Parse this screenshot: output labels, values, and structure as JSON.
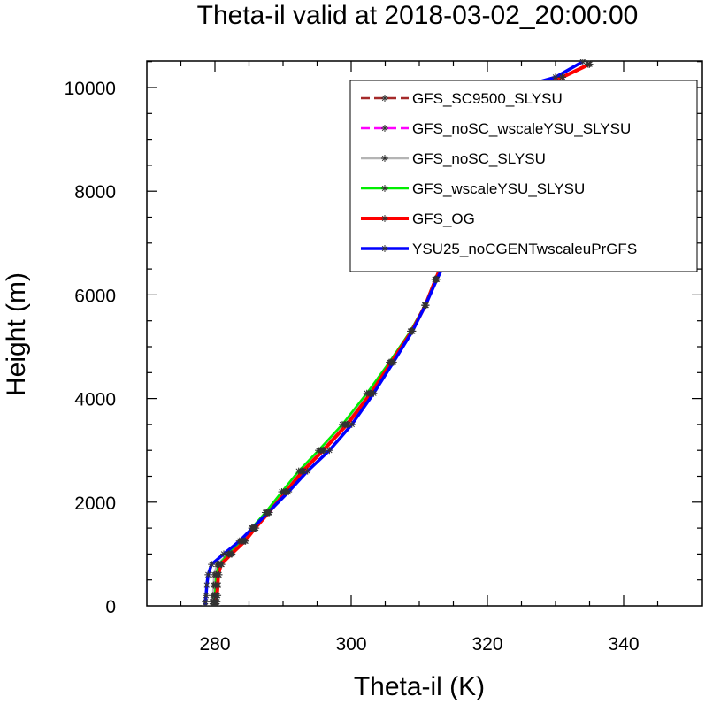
{
  "chart_data": {
    "type": "line",
    "title": "Theta-il valid at 2018-03-02_20:00:00",
    "xlabel": "Theta-il (K)",
    "ylabel": "Height (m)",
    "xlim": [
      270,
      350
    ],
    "ylim": [
      0,
      10500
    ],
    "xticks": [
      280,
      300,
      320,
      340
    ],
    "yticks": [
      0,
      2000,
      4000,
      6000,
      8000,
      10000
    ],
    "grid": false,
    "legend_position": "top-right",
    "marker": "asterisk",
    "series": [
      {
        "name": "GFS_SC9500_SLYSU",
        "color": "#a52a2a",
        "dash": "dashed",
        "width": 2.5,
        "points": [
          [
            280.3,
            0
          ],
          [
            280.3,
            80
          ],
          [
            280.4,
            200
          ],
          [
            280.5,
            400
          ],
          [
            280.6,
            600
          ],
          [
            281.0,
            800
          ],
          [
            282.5,
            1000
          ],
          [
            284.5,
            1250
          ],
          [
            286,
            1500
          ],
          [
            288,
            1800
          ],
          [
            290.5,
            2200
          ],
          [
            293,
            2600
          ],
          [
            296,
            3000
          ],
          [
            299.5,
            3500
          ],
          [
            303,
            4100
          ],
          [
            306,
            4700
          ],
          [
            309,
            5300
          ],
          [
            311,
            5800
          ],
          [
            312.5,
            6300
          ],
          [
            314,
            6800
          ],
          [
            315.5,
            7300
          ],
          [
            316.5,
            7800
          ],
          [
            317.5,
            8300
          ],
          [
            318.3,
            8900
          ],
          [
            319,
            9300
          ],
          [
            320,
            9700
          ],
          [
            321.5,
            9900
          ],
          [
            325,
            10000
          ],
          [
            331,
            10200
          ],
          [
            335,
            10450
          ]
        ]
      },
      {
        "name": "GFS_noSC_wscaleYSU_SLYSU",
        "color": "#ff00ff",
        "dash": "dashed",
        "width": 2.5,
        "points": [
          [
            279.8,
            0
          ],
          [
            279.8,
            80
          ],
          [
            279.9,
            200
          ],
          [
            280.0,
            400
          ],
          [
            280.1,
            600
          ],
          [
            280.5,
            800
          ],
          [
            282.2,
            1000
          ],
          [
            284.2,
            1250
          ],
          [
            285.8,
            1500
          ],
          [
            287.8,
            1800
          ],
          [
            290.3,
            2200
          ],
          [
            292.8,
            2600
          ],
          [
            295.7,
            3000
          ],
          [
            299.2,
            3500
          ],
          [
            302.8,
            4100
          ],
          [
            305.9,
            4700
          ],
          [
            308.9,
            5300
          ],
          [
            310.9,
            5800
          ],
          [
            312.4,
            6300
          ],
          [
            314,
            6800
          ],
          [
            315.5,
            7300
          ],
          [
            316.7,
            7800
          ],
          [
            317.7,
            8300
          ],
          [
            318.5,
            8900
          ],
          [
            319.2,
            9300
          ],
          [
            320.2,
            9700
          ],
          [
            321.8,
            9900
          ],
          [
            325,
            10000
          ],
          [
            331,
            10200
          ],
          [
            334.8,
            10450
          ]
        ]
      },
      {
        "name": "GFS_noSC_SLYSU",
        "color": "#b4b4b4",
        "dash": "solid",
        "width": 2.5,
        "points": [
          [
            279.6,
            0
          ],
          [
            279.6,
            80
          ],
          [
            279.7,
            200
          ],
          [
            279.8,
            400
          ],
          [
            279.9,
            600
          ],
          [
            280.3,
            800
          ],
          [
            282.0,
            1000
          ],
          [
            284.0,
            1250
          ],
          [
            285.6,
            1500
          ],
          [
            287.6,
            1800
          ],
          [
            290.1,
            2200
          ],
          [
            292.6,
            2600
          ],
          [
            295.5,
            3000
          ],
          [
            299.0,
            3500
          ],
          [
            302.6,
            4100
          ],
          [
            305.8,
            4700
          ],
          [
            308.8,
            5300
          ],
          [
            310.8,
            5800
          ],
          [
            312.3,
            6300
          ],
          [
            314,
            6800
          ],
          [
            315.6,
            7300
          ],
          [
            316.9,
            7800
          ],
          [
            317.9,
            8300
          ],
          [
            318.7,
            8900
          ],
          [
            319.4,
            9300
          ],
          [
            320.4,
            9700
          ],
          [
            322,
            9900
          ],
          [
            325,
            10000
          ],
          [
            331,
            10200
          ],
          [
            334.8,
            10450
          ]
        ]
      },
      {
        "name": "GFS_wscaleYSU_SLYSU",
        "color": "#00ee00",
        "dash": "solid",
        "width": 2.5,
        "points": [
          [
            279.9,
            0
          ],
          [
            279.9,
            80
          ],
          [
            280.0,
            200
          ],
          [
            280.1,
            400
          ],
          [
            280.2,
            600
          ],
          [
            280.6,
            800
          ],
          [
            282.0,
            1000
          ],
          [
            283.8,
            1250
          ],
          [
            285.4,
            1500
          ],
          [
            287.4,
            1800
          ],
          [
            289.8,
            2200
          ],
          [
            292.3,
            2600
          ],
          [
            295.2,
            3000
          ],
          [
            298.7,
            3500
          ],
          [
            302.3,
            4100
          ],
          [
            305.6,
            4700
          ],
          [
            308.7,
            5300
          ],
          [
            310.8,
            5800
          ],
          [
            312.3,
            6300
          ],
          [
            313.9,
            6800
          ],
          [
            315.5,
            7300
          ],
          [
            316.7,
            7800
          ],
          [
            317.8,
            8300
          ],
          [
            318.6,
            8900
          ],
          [
            319.3,
            9300
          ],
          [
            320.3,
            9700
          ],
          [
            321.9,
            9900
          ],
          [
            325,
            10000
          ],
          [
            331,
            10200
          ],
          [
            334.8,
            10450
          ]
        ]
      },
      {
        "name": "GFS_OG",
        "color": "#ff0000",
        "dash": "solid",
        "width": 4,
        "points": [
          [
            280.2,
            0
          ],
          [
            280.2,
            80
          ],
          [
            280.3,
            200
          ],
          [
            280.4,
            400
          ],
          [
            280.5,
            600
          ],
          [
            280.9,
            800
          ],
          [
            282.4,
            1000
          ],
          [
            284.4,
            1250
          ],
          [
            285.9,
            1500
          ],
          [
            287.9,
            1800
          ],
          [
            290.4,
            2200
          ],
          [
            292.9,
            2600
          ],
          [
            295.9,
            3000
          ],
          [
            299.4,
            3500
          ],
          [
            302.9,
            4100
          ],
          [
            305.9,
            4700
          ],
          [
            308.9,
            5300
          ],
          [
            310.9,
            5800
          ],
          [
            312.4,
            6300
          ],
          [
            314,
            6800
          ],
          [
            315.5,
            7300
          ],
          [
            316.6,
            7800
          ],
          [
            317.6,
            8300
          ],
          [
            318.4,
            8900
          ],
          [
            319.1,
            9300
          ],
          [
            320.1,
            9700
          ],
          [
            321.6,
            9900
          ],
          [
            325,
            10000
          ],
          [
            331,
            10200
          ],
          [
            335,
            10450
          ]
        ]
      },
      {
        "name": "YSU25_noCGENTwscaleuPrGFS",
        "color": "#0000ff",
        "dash": "solid",
        "width": 3.5,
        "points": [
          [
            278.6,
            0
          ],
          [
            278.6,
            80
          ],
          [
            278.7,
            200
          ],
          [
            278.8,
            400
          ],
          [
            279.0,
            600
          ],
          [
            279.5,
            800
          ],
          [
            281.3,
            1000
          ],
          [
            283.6,
            1250
          ],
          [
            285.5,
            1500
          ],
          [
            287.8,
            1800
          ],
          [
            290.8,
            2200
          ],
          [
            293.6,
            2600
          ],
          [
            296.8,
            3000
          ],
          [
            300.1,
            3500
          ],
          [
            303.3,
            4100
          ],
          [
            306.2,
            4700
          ],
          [
            309.0,
            5300
          ],
          [
            310.9,
            5800
          ],
          [
            312.6,
            6300
          ],
          [
            314.4,
            6800
          ],
          [
            316.0,
            7300
          ],
          [
            317.2,
            7800
          ],
          [
            318.1,
            8300
          ],
          [
            318.8,
            8900
          ],
          [
            319.5,
            9300
          ],
          [
            320.4,
            9700
          ],
          [
            321.8,
            9900
          ],
          [
            324.5,
            10000
          ],
          [
            330,
            10200
          ],
          [
            334,
            10500
          ]
        ]
      }
    ]
  }
}
